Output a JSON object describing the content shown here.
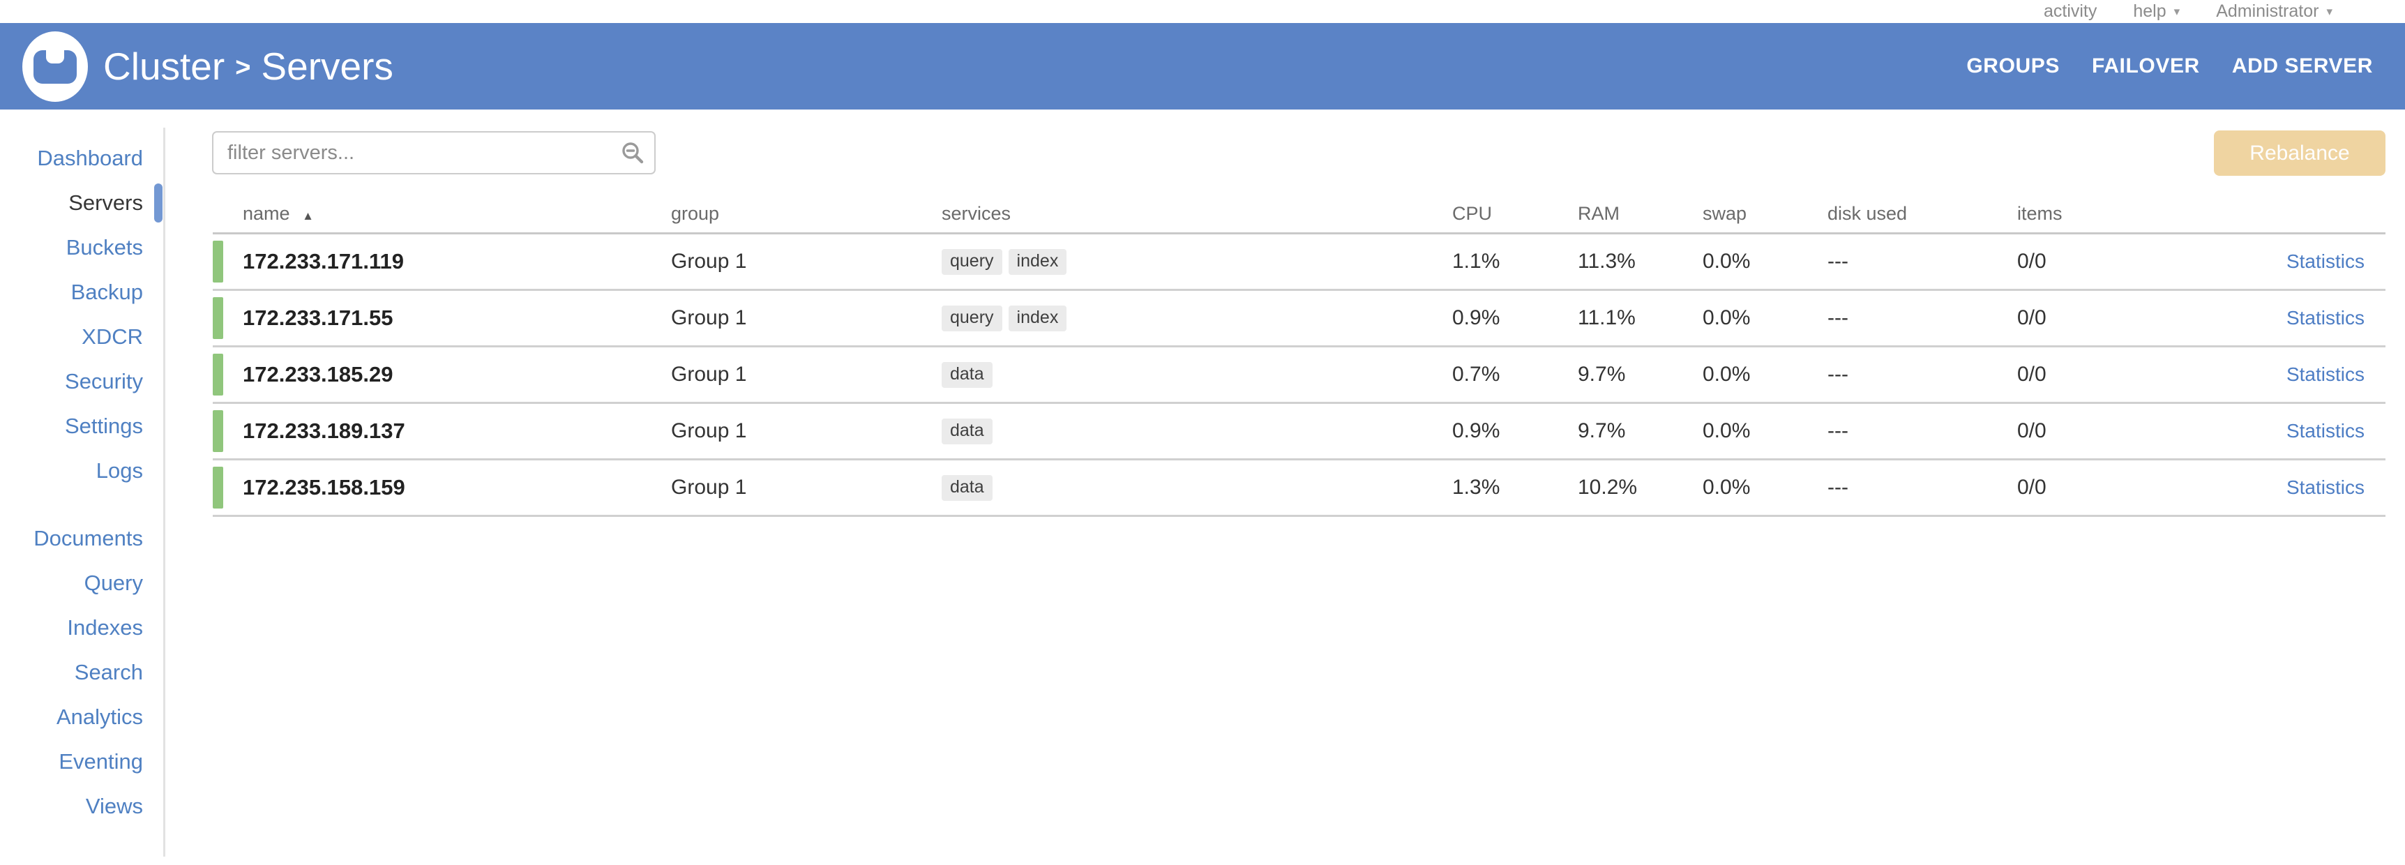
{
  "topbar": {
    "activity_label": "activity",
    "help_label": "help",
    "user_label": "Administrator"
  },
  "header": {
    "breadcrumb": {
      "cluster": "Cluster",
      "separator": ">",
      "section": "Servers"
    },
    "actions": {
      "groups": "GROUPS",
      "failover": "FAILOVER",
      "add_server": "ADD SERVER"
    }
  },
  "sidebar": {
    "active": "Servers",
    "primary": [
      "Dashboard",
      "Servers",
      "Buckets",
      "Backup",
      "XDCR",
      "Security",
      "Settings",
      "Logs"
    ],
    "secondary": [
      "Documents",
      "Query",
      "Indexes",
      "Search",
      "Analytics",
      "Eventing",
      "Views"
    ]
  },
  "toolbar": {
    "filter_placeholder": "filter servers...",
    "rebalance_label": "Rebalance"
  },
  "table": {
    "columns": [
      "name",
      "group",
      "services",
      "CPU",
      "RAM",
      "swap",
      "disk used",
      "items"
    ],
    "sort": {
      "column": "name",
      "direction": "asc"
    },
    "row_action_label": "Statistics",
    "rows": [
      {
        "name": "172.233.171.119",
        "group": "Group 1",
        "services": [
          "query",
          "index"
        ],
        "cpu": "1.1%",
        "ram": "11.3%",
        "swap": "0.0%",
        "disk_used": "---",
        "items": "0/0",
        "status": "healthy"
      },
      {
        "name": "172.233.171.55",
        "group": "Group 1",
        "services": [
          "query",
          "index"
        ],
        "cpu": "0.9%",
        "ram": "11.1%",
        "swap": "0.0%",
        "disk_used": "---",
        "items": "0/0",
        "status": "healthy"
      },
      {
        "name": "172.233.185.29",
        "group": "Group 1",
        "services": [
          "data"
        ],
        "cpu": "0.7%",
        "ram": "9.7%",
        "swap": "0.0%",
        "disk_used": "---",
        "items": "0/0",
        "status": "healthy"
      },
      {
        "name": "172.233.189.137",
        "group": "Group 1",
        "services": [
          "data"
        ],
        "cpu": "0.9%",
        "ram": "9.7%",
        "swap": "0.0%",
        "disk_used": "---",
        "items": "0/0",
        "status": "healthy"
      },
      {
        "name": "172.235.158.159",
        "group": "Group 1",
        "services": [
          "data"
        ],
        "cpu": "1.3%",
        "ram": "10.2%",
        "swap": "0.0%",
        "disk_used": "---",
        "items": "0/0",
        "status": "healthy"
      }
    ]
  },
  "icons": {
    "caret": "▾",
    "sort_asc": "▲"
  },
  "colors": {
    "header_blue": "#5b83c6",
    "link_blue": "#4f80c2",
    "active_indicator_blue": "#7398d3",
    "healthy_green": "#90c67c",
    "rebalance_disabled_bg": "#efd4a1",
    "badge_bg": "#ebebeb",
    "row_divider": "#d0d0d0",
    "muted_text": "#8b8b8b"
  }
}
